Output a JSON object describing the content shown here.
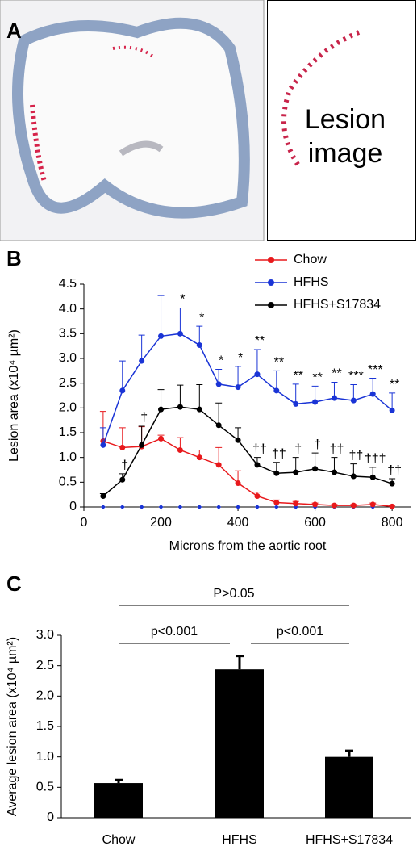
{
  "panel_a": {
    "label": "A",
    "annotation_lines": [
      "Lesion",
      "image"
    ]
  },
  "chart_data": [
    {
      "type": "line",
      "panel_label": "B",
      "x_label": "Microns from the aortic root",
      "y_label": "Lesion area  (x10⁴ µm²)",
      "x": [
        50,
        100,
        150,
        200,
        250,
        300,
        350,
        400,
        450,
        500,
        550,
        600,
        650,
        700,
        750,
        800
      ],
      "xlim": [
        0,
        850
      ],
      "xticks": [
        0,
        200,
        400,
        600,
        800
      ],
      "ylim": [
        0,
        4.5
      ],
      "yticks": [
        0,
        0.5,
        {
          "value": 1,
          "label": "1.0"
        },
        1.5,
        {
          "value": 2,
          "label": "2.0"
        },
        2.5,
        {
          "value": 3,
          "label": "3.0"
        },
        3.5,
        {
          "value": 4,
          "label": "4.0"
        },
        4.5
      ],
      "series": [
        {
          "name": "Chow",
          "color": "#e8191c",
          "values": [
            1.33,
            1.2,
            1.22,
            1.38,
            1.15,
            1.0,
            0.85,
            0.48,
            0.22,
            0.09,
            0.07,
            0.05,
            0.03,
            0.03,
            0.05,
            0.01
          ],
          "errors": [
            0.6,
            0.4,
            0.4,
            0.07,
            0.25,
            0.15,
            0.35,
            0.25,
            0.08,
            0.05,
            0.04,
            0.03,
            0.02,
            0.02,
            0.03,
            0.02
          ],
          "significance": [
            null,
            null,
            null,
            null,
            null,
            null,
            null,
            null,
            null,
            null,
            null,
            null,
            null,
            null,
            null,
            null
          ]
        },
        {
          "name": "HFHS",
          "color": "#1a34d6",
          "values": [
            1.25,
            2.35,
            2.95,
            3.45,
            3.5,
            3.27,
            2.48,
            2.42,
            2.68,
            2.35,
            2.08,
            2.12,
            2.2,
            2.15,
            2.28,
            1.95
          ],
          "errors": [
            0.35,
            0.6,
            0.52,
            0.82,
            0.52,
            0.38,
            0.3,
            0.42,
            0.5,
            0.4,
            0.4,
            0.32,
            0.32,
            0.32,
            0.32,
            0.35
          ],
          "significance": [
            null,
            null,
            null,
            null,
            "*",
            "*",
            "*",
            "*",
            "**",
            "**",
            "**",
            "**",
            "**",
            "***",
            "***",
            "**"
          ]
        },
        {
          "name": "HFHS+S17834",
          "color": "#000000",
          "values": [
            0.22,
            0.55,
            1.25,
            1.97,
            2.02,
            1.97,
            1.65,
            1.35,
            0.85,
            0.68,
            0.7,
            0.77,
            0.7,
            0.62,
            0.6,
            0.47
          ],
          "errors": [
            0.05,
            0.12,
            0.38,
            0.4,
            0.44,
            0.5,
            0.45,
            0.25,
            0.15,
            0.22,
            0.3,
            0.32,
            0.3,
            0.25,
            0.2,
            0.1
          ],
          "significance": [
            null,
            "†",
            "†",
            null,
            null,
            null,
            null,
            null,
            "††",
            "††",
            "†",
            "†",
            "††",
            "††",
            "†††",
            "††"
          ]
        }
      ]
    },
    {
      "type": "bar",
      "panel_label": "C",
      "y_label": "Average lesion area  (x10⁴ µm²)",
      "categories": [
        "Chow",
        "HFHS",
        "HFHS+S17834"
      ],
      "values": [
        0.57,
        2.44,
        1.0
      ],
      "errors": [
        0.05,
        0.22,
        0.1
      ],
      "color": "#000000",
      "ylim": [
        0,
        3
      ],
      "yticks": [
        0,
        0.5,
        {
          "value": 1,
          "label": "1.0"
        },
        1.5,
        {
          "value": 2,
          "label": "2.0"
        },
        2.5,
        {
          "value": 3,
          "label": "3.0"
        }
      ],
      "comparisons": [
        {
          "from": "Chow",
          "to": "HFHS+S17834",
          "label": "P>0.05"
        },
        {
          "from": "Chow",
          "to": "HFHS",
          "label": "p<0.001"
        },
        {
          "from": "HFHS",
          "to": "HFHS+S17834",
          "label": "p<0.001"
        }
      ]
    }
  ]
}
